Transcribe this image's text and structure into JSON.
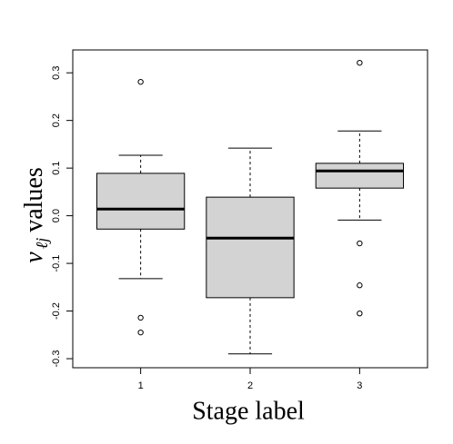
{
  "chart_data": {
    "type": "box",
    "x_label": "Stage label",
    "y_label": {
      "symbol": "v",
      "subscript": "ℓj",
      "text": "values"
    },
    "categories": [
      "1",
      "2",
      "3"
    ],
    "color": "#d3d3d3",
    "boxes": [
      {
        "whisker_low": -0.132,
        "q1": -0.028,
        "median": 0.014,
        "q3": 0.089,
        "whisker_high": 0.127,
        "outliers": [
          0.281,
          -0.214,
          -0.245
        ]
      },
      {
        "whisker_low": -0.29,
        "q1": -0.172,
        "median": -0.047,
        "q3": 0.039,
        "whisker_high": 0.142,
        "outliers": []
      },
      {
        "whisker_low": -0.009,
        "q1": 0.058,
        "median": 0.094,
        "q3": 0.11,
        "whisker_high": 0.178,
        "outliers": [
          0.321,
          -0.058,
          -0.146,
          -0.205
        ]
      }
    ],
    "ylim": [
      -0.319,
      0.348
    ],
    "yticks": [
      -0.3,
      -0.2,
      -0.1,
      {
        "value": 0,
        "label": "0.0"
      },
      0.1,
      0.2,
      0.3
    ]
  }
}
